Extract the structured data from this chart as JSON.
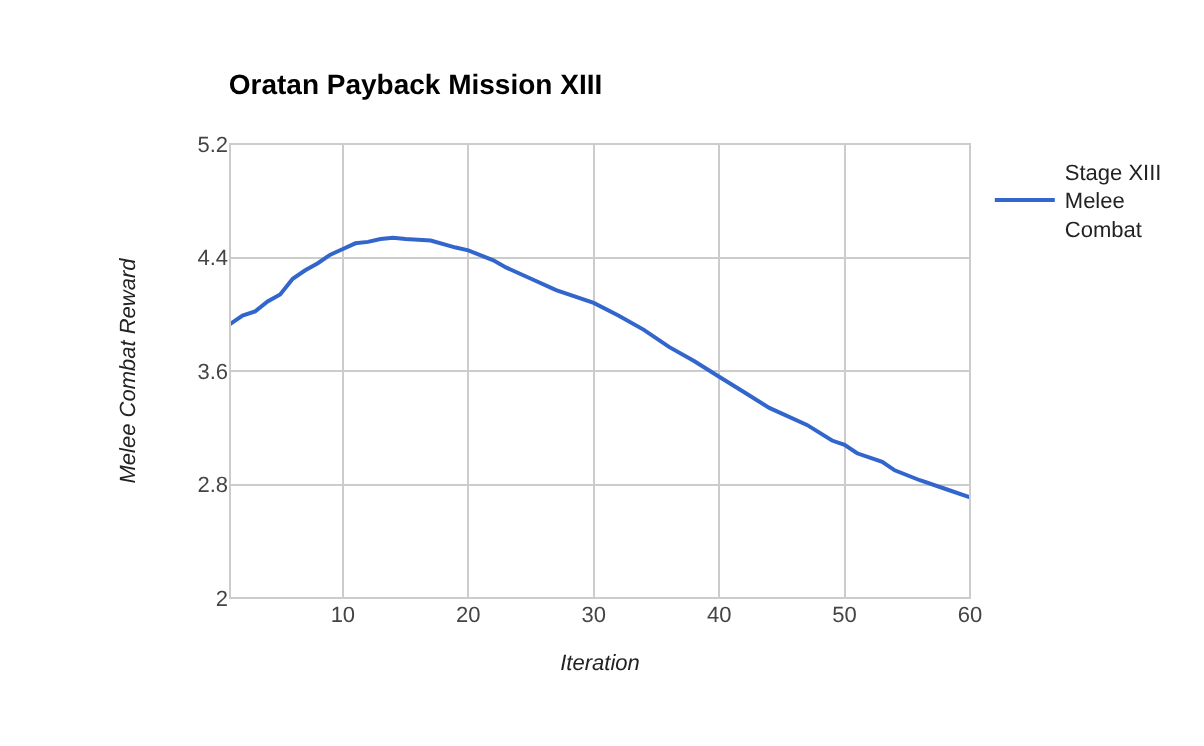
{
  "chart_data": {
    "type": "line",
    "title": "Oratan Payback Mission XIII",
    "xlabel": "Iteration",
    "ylabel": "Melee Combat Reward",
    "x": [
      1,
      2,
      3,
      4,
      5,
      6,
      7,
      8,
      9,
      10,
      11,
      12,
      13,
      14,
      15,
      17,
      19,
      20,
      22,
      23,
      25,
      27,
      30,
      32,
      34,
      36,
      38,
      40,
      42,
      44,
      47,
      49,
      50,
      51,
      53,
      54,
      56,
      58,
      60
    ],
    "series": [
      {
        "name": "Stage XIII Melee Combat",
        "color": "#3366cc",
        "values": [
          3.93,
          3.99,
          4.02,
          4.09,
          4.14,
          4.25,
          4.31,
          4.36,
          4.42,
          4.46,
          4.5,
          4.51,
          4.53,
          4.54,
          4.53,
          4.52,
          4.47,
          4.45,
          4.38,
          4.33,
          4.25,
          4.17,
          4.08,
          3.99,
          3.89,
          3.77,
          3.67,
          3.56,
          3.45,
          3.34,
          3.22,
          3.11,
          3.08,
          3.02,
          2.96,
          2.9,
          2.83,
          2.77,
          2.71
        ]
      }
    ],
    "xlim": [
      1,
      60
    ],
    "xticks": [
      10,
      20,
      30,
      40,
      50,
      60
    ],
    "ylim": [
      2,
      5.2
    ],
    "yticks": [
      2,
      2.8,
      3.6,
      4.4,
      5.2
    ],
    "grid": true,
    "legend": "top right",
    "marker": "none",
    "line_style": "solid"
  }
}
